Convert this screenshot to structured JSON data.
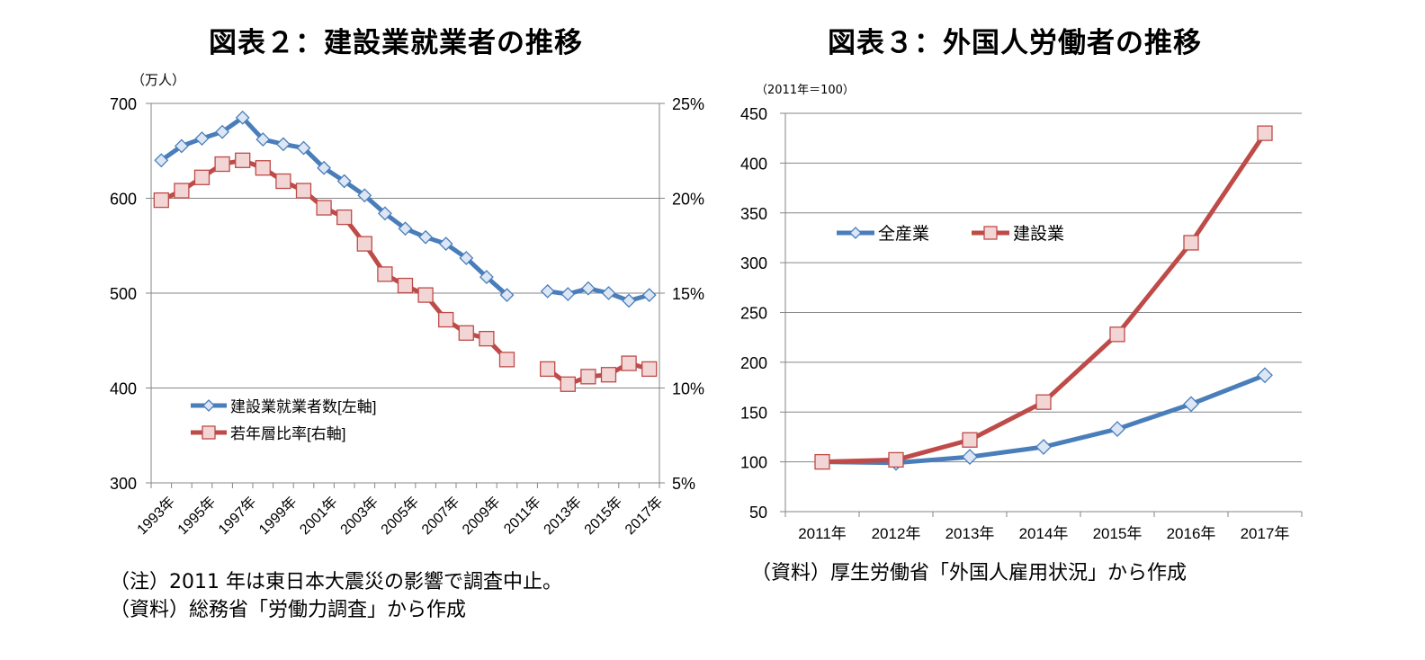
{
  "chart_data": [
    {
      "type": "line",
      "title": "図表２：建設業就業者の推移",
      "ylabel": "（万人）",
      "ylim": [
        300,
        700
      ],
      "y_ticks": [
        "700",
        "600",
        "500",
        "400",
        "300"
      ],
      "y2lim": [
        5,
        25
      ],
      "y2_ticks": [
        "25%",
        "20%",
        "15%",
        "10%",
        "5%"
      ],
      "categories": [
        "1993年",
        "1994年",
        "1995年",
        "1996年",
        "1997年",
        "1998年",
        "1999年",
        "2000年",
        "2001年",
        "2002年",
        "2003年",
        "2004年",
        "2005年",
        "2006年",
        "2007年",
        "2008年",
        "2009年",
        "2010年",
        "2011年",
        "2012年",
        "2013年",
        "2014年",
        "2015年",
        "2016年",
        "2017年"
      ],
      "x_tick_labels": [
        "1993年",
        "1995年",
        "1997年",
        "1999年",
        "2001年",
        "2003年",
        "2005年",
        "2007年",
        "2009年",
        "2011年",
        "2013年",
        "2015年",
        "2017年"
      ],
      "grid": true,
      "legend_position": "bottom-left",
      "series": [
        {
          "name": "建設業就業者数[左軸]",
          "axis": "left",
          "color": "#4a7ebb",
          "marker": "diamond",
          "marker_fill": "#dce6f4",
          "values": [
            640,
            655,
            663,
            670,
            685,
            662,
            657,
            653,
            632,
            618,
            603,
            584,
            568,
            559,
            552,
            537,
            517,
            498,
            null,
            502,
            499,
            505,
            500,
            492,
            498
          ]
        },
        {
          "name": "若年層比率[右軸]",
          "axis": "right",
          "color": "#be4b48",
          "marker": "square",
          "marker_fill": "#f2d5d5",
          "values": [
            19.9,
            20.4,
            21.1,
            21.8,
            22.0,
            21.6,
            20.9,
            20.4,
            19.5,
            19.0,
            17.6,
            16.0,
            15.4,
            14.9,
            13.6,
            12.9,
            12.6,
            11.5,
            null,
            11.0,
            10.2,
            10.6,
            10.7,
            11.3,
            11.0
          ]
        }
      ],
      "notes": [
        "（注）2011 年は東日本大震災の影響で調査中止。",
        "（資料）総務省「労働力調査」から作成"
      ]
    },
    {
      "type": "line",
      "title": "図表３：外国人労働者の推移",
      "ylabel": "（2011年＝100）",
      "ylim": [
        50,
        450
      ],
      "y_ticks": [
        "450",
        "400",
        "350",
        "300",
        "250",
        "200",
        "150",
        "100",
        "50"
      ],
      "categories": [
        "2011年",
        "2012年",
        "2013年",
        "2014年",
        "2015年",
        "2016年",
        "2017年"
      ],
      "grid": true,
      "legend_position": "top-left",
      "series": [
        {
          "name": "全産業",
          "color": "#4a7ebb",
          "marker": "diamond",
          "marker_fill": "#dce6f4",
          "values": [
            100,
            99,
            105,
            115,
            133,
            158,
            187
          ]
        },
        {
          "name": "建設業",
          "color": "#be4b48",
          "marker": "square",
          "marker_fill": "#f2d5d5",
          "values": [
            100,
            102,
            122,
            160,
            228,
            320,
            430
          ]
        }
      ],
      "notes": [
        "（資料）厚生労働省「外国人雇用状況」から作成"
      ]
    }
  ]
}
